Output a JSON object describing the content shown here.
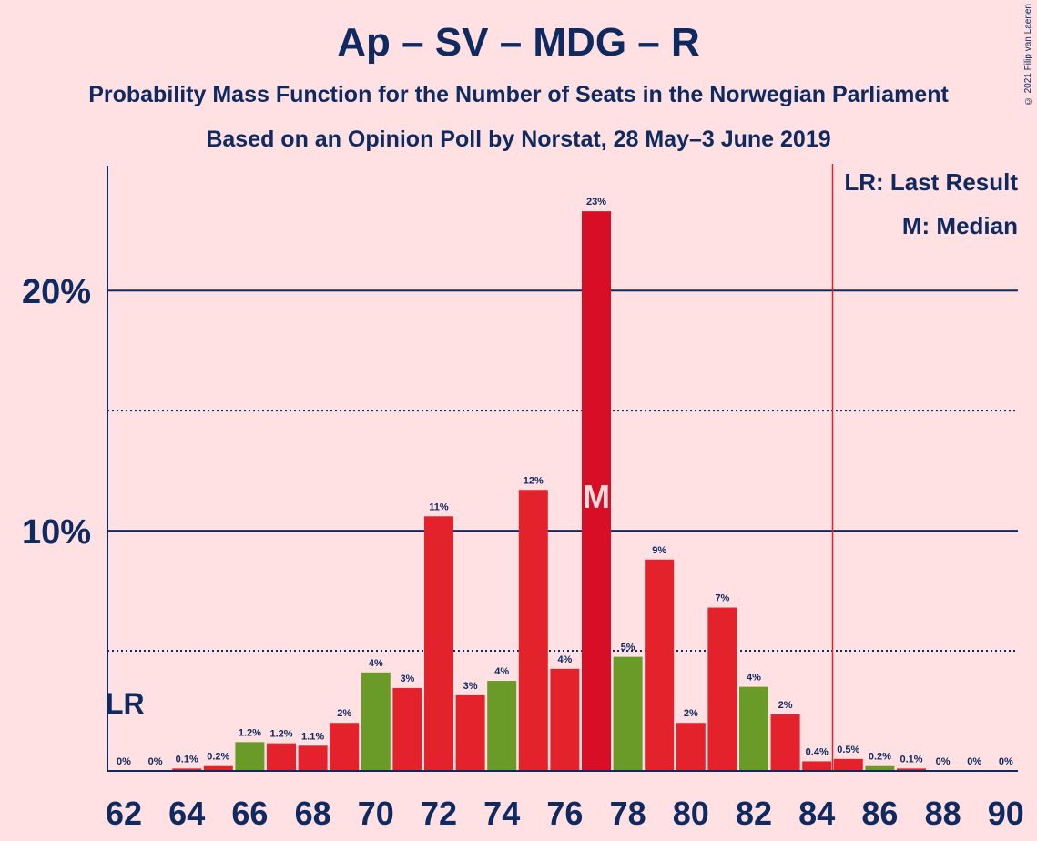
{
  "header": {
    "title": "Ap – SV – MDG – R",
    "subtitle1": "Probability Mass Function for the Number of Seats in the Norwegian Parliament",
    "subtitle2": "Based on an Opinion Poll by Norstat, 28 May–3 June 2019",
    "copyright": "© 2021 Filip van Laenen"
  },
  "legend": {
    "lr": "LR: Last Result",
    "median": "M: Median"
  },
  "colors": {
    "background": "#ffe0e3",
    "text": "#0e2a60",
    "red": "#e3222b",
    "dark_red": "#d80e26",
    "green": "#6a9a27",
    "gridline": "#0e2a60",
    "last_result_line": "#e3222b"
  },
  "chart_data": {
    "type": "bar",
    "title": "Ap – SV – MDG – R",
    "x": [
      62,
      63,
      64,
      65,
      66,
      67,
      68,
      69,
      70,
      71,
      72,
      73,
      74,
      75,
      76,
      77,
      78,
      79,
      80,
      81,
      82,
      83,
      84,
      85,
      86,
      87,
      88,
      89,
      90
    ],
    "values": [
      0,
      0,
      0.1,
      0.2,
      1.2,
      1.15,
      1.05,
      2.0,
      4.1,
      3.45,
      10.6,
      3.15,
      3.75,
      11.7,
      4.25,
      23.3,
      4.75,
      8.8,
      2.0,
      6.8,
      3.5,
      2.35,
      0.4,
      0.5,
      0.2,
      0.1,
      0,
      0,
      0
    ],
    "labels": [
      "0%",
      "0%",
      "0.1%",
      "0.2%",
      "1.2%",
      "1.2%",
      "1.1%",
      "2%",
      "4%",
      "3%",
      "11%",
      "3%",
      "4%",
      "12%",
      "4%",
      "23%",
      "5%",
      "9%",
      "2%",
      "7%",
      "4%",
      "2%",
      "0.4%",
      "0.5%",
      "0.2%",
      "0.1%",
      "0%",
      "0%",
      "0%"
    ],
    "colors": [
      "red",
      "red",
      "red",
      "red",
      "green",
      "red",
      "red",
      "red",
      "green",
      "red",
      "red",
      "red",
      "green",
      "red",
      "red",
      "dark_red",
      "green",
      "red",
      "red",
      "red",
      "green",
      "red",
      "red",
      "red",
      "green",
      "red",
      "red",
      "red",
      "red"
    ],
    "xticks": [
      "62",
      "64",
      "66",
      "68",
      "70",
      "72",
      "74",
      "76",
      "78",
      "80",
      "82",
      "84",
      "86",
      "88",
      "90"
    ],
    "yticks": [
      "10%",
      "20%"
    ],
    "ylim": [
      0,
      25.2
    ],
    "solid_gridlines": [
      10,
      20
    ],
    "dotted_gridlines": [
      5,
      15
    ],
    "last_result": 85,
    "last_result_label": "LR",
    "median": 77,
    "median_label": "M"
  }
}
